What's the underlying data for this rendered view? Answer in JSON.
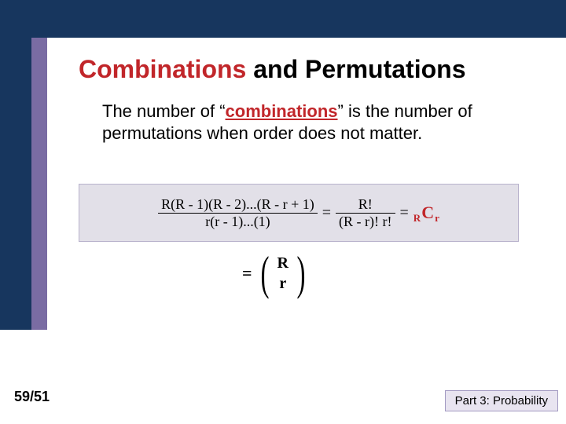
{
  "colors": {
    "header_bg": "#17365e",
    "side_accent": "#7a6ca3",
    "accent_text": "#c1262a",
    "formula_bg": "#e2e0e8",
    "formula_border": "#b8b2cc",
    "footer_box_bg": "#e8e4f0",
    "footer_box_border": "#a39ac2",
    "text": "#000000",
    "page_bg": "#ffffff"
  },
  "title": {
    "word1": "Combinations",
    "word2": " and Permutations"
  },
  "body": {
    "pre": "The number of “",
    "keyword": "combinations",
    "post": "” is the number of permutations when order does not matter."
  },
  "formula": {
    "frac1_num": "R(R - 1)(R - 2)...(R - r + 1)",
    "frac1_den": "r(r - 1)...(1)",
    "eq": "=",
    "frac2_num": "R!",
    "frac2_den": "(R - r)! r!",
    "eq2": "=",
    "comb_left_sub": "R",
    "comb_center": "C",
    "comb_right_sub": "r"
  },
  "binom": {
    "eq": "=",
    "lparen": "(",
    "top": "R",
    "bottom": "r",
    "rparen": ")"
  },
  "footer": {
    "left": "59/51",
    "right": "Part 3: Probability"
  }
}
